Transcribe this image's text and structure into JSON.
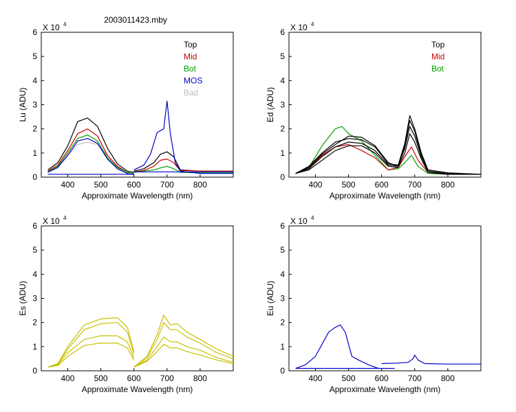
{
  "figure_title": "2003011423.mby",
  "chart_data": [
    {
      "id": "lu",
      "type": "line",
      "xlabel": "Approximate Wavelength (nm)",
      "ylabel": "Lu (ADU)",
      "scale_label": "X 10",
      "scale_exponent": "4",
      "xlim": [
        320,
        900
      ],
      "ylim": [
        0,
        6
      ],
      "xticks": [
        400,
        500,
        600,
        700,
        800
      ],
      "yticks": [
        0,
        1,
        2,
        3,
        4,
        5,
        6
      ],
      "legend": [
        {
          "label": "Top",
          "color": "#000000"
        },
        {
          "label": "Mid",
          "color": "#cc0000"
        },
        {
          "label": "Bot",
          "color": "#00a000"
        },
        {
          "label": "MOS",
          "color": "#0000cc"
        },
        {
          "label": "Bad",
          "color": "#c0c0c0"
        }
      ],
      "series": [
        {
          "name": "Bad",
          "color": "#c0c0c0",
          "x": [
            340,
            370,
            400,
            430,
            460,
            490,
            520,
            550,
            580,
            600
          ],
          "y": [
            0.2,
            0.45,
            0.9,
            1.35,
            1.45,
            1.35,
            0.9,
            0.45,
            0.2,
            0.15
          ]
        },
        {
          "name": "Top",
          "color": "#000000",
          "x": [
            340,
            370,
            400,
            430,
            460,
            490,
            520,
            550,
            580,
            600
          ],
          "y": [
            0.3,
            0.6,
            1.3,
            2.3,
            2.45,
            2.1,
            1.2,
            0.55,
            0.25,
            0.2
          ]
        },
        {
          "name": "Mid",
          "color": "#cc0000",
          "x": [
            340,
            370,
            400,
            430,
            460,
            490,
            520,
            550,
            580,
            600
          ],
          "y": [
            0.25,
            0.5,
            1.1,
            1.8,
            2.0,
            1.7,
            0.9,
            0.45,
            0.2,
            0.15
          ]
        },
        {
          "name": "Bot",
          "color": "#00a000",
          "x": [
            340,
            370,
            400,
            430,
            460,
            490,
            520,
            550,
            580,
            600
          ],
          "y": [
            0.22,
            0.45,
            1.0,
            1.6,
            1.75,
            1.5,
            0.8,
            0.4,
            0.2,
            0.15
          ]
        },
        {
          "name": "MOS",
          "color": "#0000cc",
          "x": [
            340,
            370,
            400,
            430,
            460,
            490,
            520,
            550,
            580,
            600
          ],
          "y": [
            0.2,
            0.4,
            0.9,
            1.5,
            1.6,
            1.4,
            0.75,
            0.35,
            0.15,
            0.1
          ]
        },
        {
          "name": "Top",
          "color": "#000000",
          "x": [
            600,
            630,
            660,
            680,
            700,
            720,
            740,
            800,
            900
          ],
          "y": [
            0.25,
            0.35,
            0.6,
            0.95,
            1.05,
            0.85,
            0.3,
            0.25,
            0.25
          ]
        },
        {
          "name": "Mid",
          "color": "#cc0000",
          "x": [
            600,
            630,
            660,
            680,
            700,
            720,
            740,
            800,
            900
          ],
          "y": [
            0.22,
            0.28,
            0.45,
            0.7,
            0.75,
            0.6,
            0.28,
            0.25,
            0.25
          ]
        },
        {
          "name": "Bot",
          "color": "#00a000",
          "x": [
            600,
            630,
            660,
            680,
            700,
            720,
            740,
            800,
            900
          ],
          "y": [
            0.2,
            0.25,
            0.3,
            0.38,
            0.45,
            0.35,
            0.2,
            0.18,
            0.18
          ]
        },
        {
          "name": "MOS",
          "color": "#0000cc",
          "x": [
            600,
            630,
            650,
            670,
            690,
            700,
            710,
            725,
            740,
            800,
            900
          ],
          "y": [
            0.3,
            0.5,
            0.95,
            1.85,
            2.0,
            3.15,
            1.8,
            0.6,
            0.25,
            0.15,
            0.15
          ]
        },
        {
          "name": "MOS",
          "color": "#0000cc",
          "x": [
            340,
            600
          ],
          "y": [
            0.12,
            0.12
          ]
        },
        {
          "name": "MOS",
          "color": "#0000cc",
          "x": [
            600,
            900
          ],
          "y": [
            0.22,
            0.22
          ]
        }
      ]
    },
    {
      "id": "ed",
      "type": "line",
      "xlabel": "Approximate Wavelength (nm)",
      "ylabel": "Ed (ADU)",
      "scale_label": "X 10",
      "scale_exponent": "4",
      "xlim": [
        320,
        900
      ],
      "ylim": [
        0,
        6
      ],
      "xticks": [
        400,
        500,
        600,
        700,
        800
      ],
      "yticks": [
        0,
        1,
        2,
        3,
        4,
        5,
        6
      ],
      "legend": [
        {
          "label": "Top",
          "color": "#000000"
        },
        {
          "label": "Mid",
          "color": "#cc0000"
        },
        {
          "label": "Bot",
          "color": "#00a000"
        }
      ],
      "series": [
        {
          "name": "Bot",
          "color": "#00a000",
          "x": [
            340,
            380,
            420,
            460,
            480,
            500,
            540,
            580,
            620,
            650,
            670,
            690,
            710,
            740,
            800,
            900
          ],
          "y": [
            0.15,
            0.4,
            1.3,
            2.0,
            2.1,
            1.8,
            1.5,
            0.9,
            0.3,
            0.35,
            0.6,
            0.9,
            0.45,
            0.15,
            0.12,
            0.12
          ]
        },
        {
          "name": "Mid",
          "color": "#cc0000",
          "x": [
            340,
            380,
            420,
            460,
            500,
            540,
            580,
            620,
            650,
            670,
            690,
            710,
            740,
            800,
            900
          ],
          "y": [
            0.15,
            0.35,
            0.9,
            1.25,
            1.35,
            1.1,
            0.8,
            0.3,
            0.4,
            0.85,
            1.25,
            0.7,
            0.2,
            0.12,
            0.12
          ]
        },
        {
          "name": "Top",
          "color": "#000000",
          "x": [
            340,
            380,
            420,
            460,
            500,
            540,
            580,
            620,
            650,
            670,
            685,
            700,
            720,
            740,
            800,
            900
          ],
          "y": [
            0.15,
            0.45,
            1.0,
            1.45,
            1.6,
            1.55,
            1.25,
            0.55,
            0.5,
            1.4,
            2.55,
            2.0,
            1.0,
            0.3,
            0.15,
            0.12
          ]
        },
        {
          "name": "Top",
          "color": "#000000",
          "x": [
            340,
            380,
            420,
            460,
            500,
            540,
            580,
            620,
            650,
            670,
            685,
            700,
            720,
            740,
            800,
            900
          ],
          "y": [
            0.15,
            0.35,
            0.85,
            1.25,
            1.45,
            1.4,
            1.1,
            0.5,
            0.45,
            1.2,
            2.1,
            1.7,
            0.85,
            0.25,
            0.12,
            0.12
          ]
        },
        {
          "name": "Top",
          "color": "#000000",
          "x": [
            340,
            380,
            420,
            460,
            500,
            540,
            580,
            620,
            650,
            670,
            685,
            700,
            720,
            740,
            800,
            900
          ],
          "y": [
            0.15,
            0.3,
            0.7,
            1.1,
            1.3,
            1.3,
            1.0,
            0.45,
            0.4,
            1.0,
            1.8,
            1.45,
            0.75,
            0.2,
            0.12,
            0.12
          ]
        },
        {
          "name": "Top",
          "color": "#000000",
          "x": [
            340,
            380,
            420,
            460,
            500,
            540,
            580,
            620,
            650,
            670,
            685,
            700,
            720,
            740,
            800,
            900
          ],
          "y": [
            0.15,
            0.4,
            0.95,
            1.35,
            1.7,
            1.65,
            1.3,
            0.6,
            0.45,
            1.3,
            2.35,
            1.9,
            0.9,
            0.3,
            0.18,
            0.12
          ]
        }
      ]
    },
    {
      "id": "es",
      "type": "line",
      "xlabel": "Approximate Wavelength (nm)",
      "ylabel": "Es  (ADU)",
      "scale_label": "X 10",
      "scale_exponent": "4",
      "xlim": [
        320,
        900
      ],
      "ylim": [
        0,
        6
      ],
      "xticks": [
        400,
        500,
        600,
        700,
        800
      ],
      "yticks": [
        0,
        1,
        2,
        3,
        4,
        5,
        6
      ],
      "legend": [],
      "series": [
        {
          "name": "Es",
          "color": "#c8c000",
          "x": [
            340,
            370,
            400,
            450,
            500,
            550,
            580,
            600
          ],
          "y": [
            0.15,
            0.3,
            1.0,
            1.9,
            2.15,
            2.2,
            1.8,
            0.8
          ]
        },
        {
          "name": "Es",
          "color": "#c8c000",
          "x": [
            340,
            370,
            400,
            450,
            500,
            550,
            580,
            600
          ],
          "y": [
            0.15,
            0.28,
            0.9,
            1.7,
            1.95,
            2.0,
            1.6,
            0.7
          ]
        },
        {
          "name": "Es",
          "color": "#c8c000",
          "x": [
            340,
            370,
            400,
            450,
            500,
            550,
            580,
            600
          ],
          "y": [
            0.15,
            0.25,
            0.75,
            1.3,
            1.45,
            1.45,
            1.2,
            0.55
          ]
        },
        {
          "name": "Es",
          "color": "#c8c000",
          "x": [
            340,
            370,
            400,
            450,
            500,
            550,
            580,
            600
          ],
          "y": [
            0.15,
            0.22,
            0.6,
            1.05,
            1.15,
            1.15,
            0.95,
            0.45
          ]
        },
        {
          "name": "Es",
          "color": "#c8c000",
          "x": [
            600,
            640,
            670,
            690,
            710,
            730,
            760,
            800,
            850,
            900
          ],
          "y": [
            0.15,
            0.6,
            1.5,
            2.3,
            1.9,
            1.95,
            1.6,
            1.3,
            0.9,
            0.6
          ]
        },
        {
          "name": "Es",
          "color": "#c8c000",
          "x": [
            600,
            640,
            670,
            690,
            710,
            730,
            760,
            800,
            850,
            900
          ],
          "y": [
            0.15,
            0.55,
            1.3,
            2.0,
            1.7,
            1.7,
            1.4,
            1.15,
            0.75,
            0.5
          ]
        },
        {
          "name": "Es",
          "color": "#c8c000",
          "x": [
            600,
            640,
            670,
            690,
            710,
            730,
            760,
            800,
            850,
            900
          ],
          "y": [
            0.15,
            0.45,
            1.0,
            1.4,
            1.2,
            1.2,
            1.0,
            0.85,
            0.55,
            0.35
          ]
        },
        {
          "name": "Es",
          "color": "#c8c000",
          "x": [
            600,
            640,
            670,
            690,
            710,
            730,
            760,
            800,
            850,
            900
          ],
          "y": [
            0.15,
            0.4,
            0.8,
            1.1,
            0.95,
            0.95,
            0.8,
            0.65,
            0.45,
            0.3
          ]
        }
      ]
    },
    {
      "id": "eu",
      "type": "line",
      "xlabel": "Approximate Wavelength (nm)",
      "ylabel": "Eu  (ADU)",
      "scale_label": "X 10",
      "scale_exponent": "4",
      "xlim": [
        320,
        900
      ],
      "ylim": [
        0,
        6
      ],
      "xticks": [
        400,
        500,
        600,
        700,
        800
      ],
      "yticks": [
        0,
        1,
        2,
        3,
        4,
        5,
        6
      ],
      "legend": [],
      "series": [
        {
          "name": "Eu",
          "color": "#0000cc",
          "x": [
            340,
            370,
            400,
            420,
            440,
            460,
            475,
            490,
            510,
            530,
            560,
            590
          ],
          "y": [
            0.1,
            0.25,
            0.6,
            1.1,
            1.6,
            1.8,
            1.9,
            1.6,
            0.6,
            0.45,
            0.25,
            0.1
          ]
        },
        {
          "name": "Eu",
          "color": "#0000cc",
          "x": [
            340,
            640
          ],
          "y": [
            0.1,
            0.1
          ]
        },
        {
          "name": "Eu",
          "color": "#0000cc",
          "x": [
            600,
            650,
            680,
            695,
            700,
            710,
            730,
            800,
            900
          ],
          "y": [
            0.3,
            0.32,
            0.35,
            0.5,
            0.65,
            0.45,
            0.3,
            0.28,
            0.28
          ]
        }
      ]
    }
  ]
}
